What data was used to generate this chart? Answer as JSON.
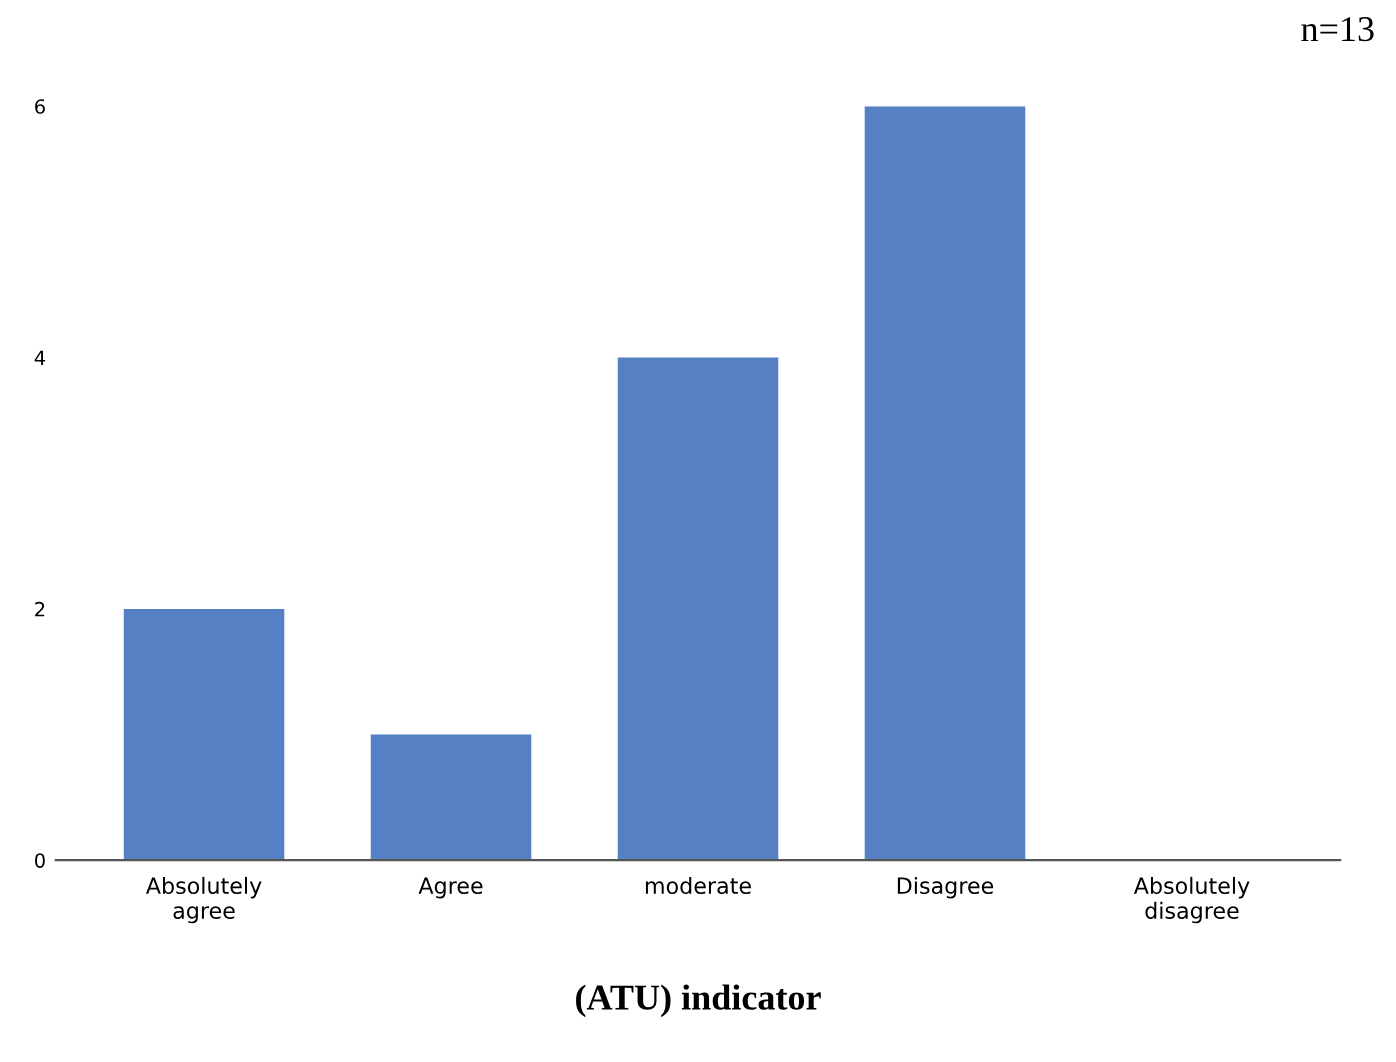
{
  "chart_data": {
    "type": "bar",
    "categories": [
      "Absolutely\nagree",
      "Agree",
      "moderate",
      "Disagree",
      "Absolutely\ndisagree"
    ],
    "values": [
      2,
      1,
      4,
      6,
      0
    ],
    "color": "#5580c4",
    "ylim": [
      0,
      6
    ],
    "yticks": [
      0,
      2,
      4,
      6
    ],
    "grid": false,
    "xlabel": "(ATU) indicator",
    "annotations": [
      "n=13"
    ]
  }
}
